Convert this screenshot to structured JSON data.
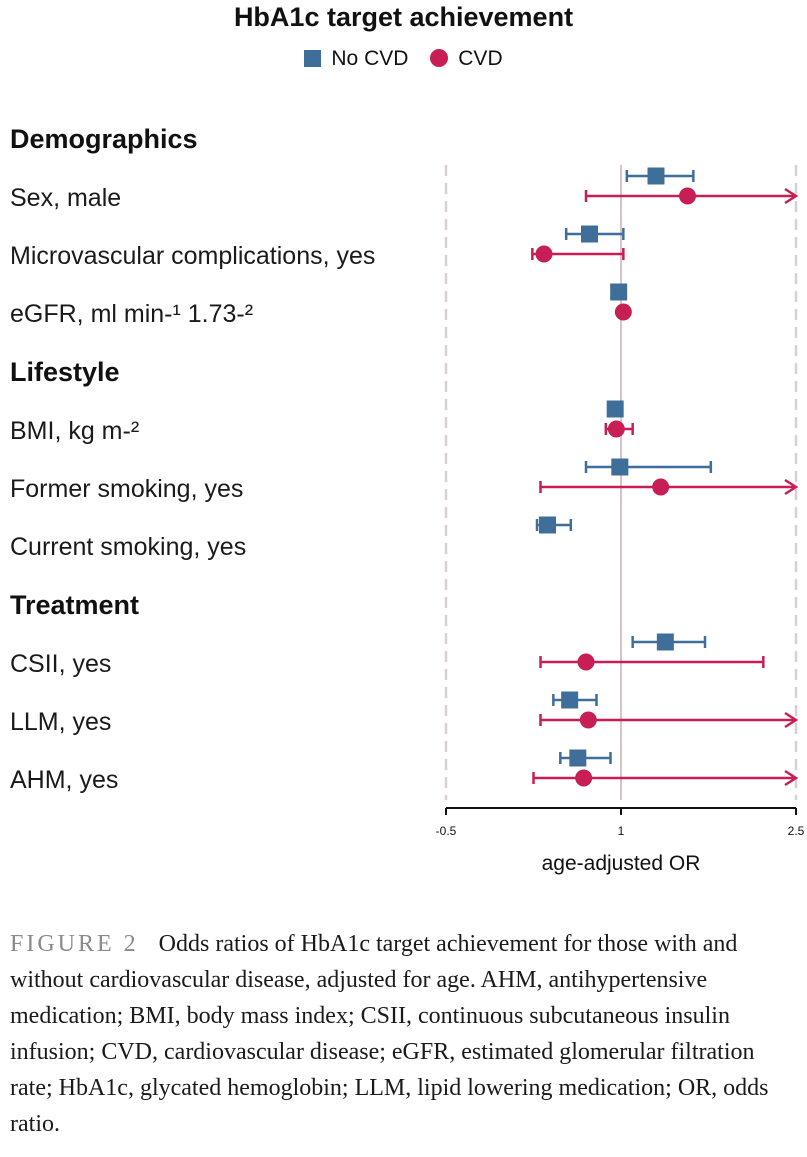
{
  "chart_data": {
    "type": "forest",
    "title": "HbA1c target achievement",
    "xlabel": "age-adjusted OR",
    "xlim": [
      -0.5,
      2.5
    ],
    "ticks": [
      -0.5,
      1,
      2.5
    ],
    "tick_labels": [
      "-0.5",
      "1",
      "2.5"
    ],
    "reference_line": 1,
    "legend": [
      {
        "name": "No CVD",
        "color": "#3f6e9a",
        "marker": "square"
      },
      {
        "name": "CVD",
        "color": "#c81e56",
        "marker": "circle"
      }
    ],
    "sections": [
      {
        "header": "Demographics",
        "rows": [
          {
            "label": "Sex, male",
            "no_cvd": {
              "est": 1.3,
              "lo": 1.05,
              "hi": 1.62
            },
            "cvd": {
              "est": 1.57,
              "lo": 0.7,
              "hi": 2.5,
              "arrow": true
            }
          },
          {
            "label": "Microvascular complications, yes",
            "no_cvd": {
              "est": 0.73,
              "lo": 0.53,
              "hi": 1.02
            },
            "cvd": {
              "est": 0.34,
              "lo": 0.24,
              "hi": 1.02
            }
          },
          {
            "label": "eGFR, ml min-¹ 1.73-²",
            "no_cvd": {
              "est": 0.98
            },
            "cvd": {
              "est": 1.02
            }
          }
        ]
      },
      {
        "header": "Lifestyle",
        "rows": [
          {
            "label": "BMI, kg m-²",
            "no_cvd": {
              "est": 0.95
            },
            "cvd": {
              "est": 0.96,
              "lo": 0.87,
              "hi": 1.1
            }
          },
          {
            "label": "Former smoking, yes",
            "no_cvd": {
              "est": 0.99,
              "lo": 0.7,
              "hi": 1.77
            },
            "cvd": {
              "est": 1.34,
              "lo": 0.31,
              "hi": 2.5,
              "arrow": true
            }
          },
          {
            "label": "Current smoking, yes",
            "no_cvd": {
              "est": 0.37,
              "lo": 0.28,
              "hi": 0.57
            },
            "cvd": null
          }
        ]
      },
      {
        "header": "Treatment",
        "rows": [
          {
            "label": "CSII, yes",
            "no_cvd": {
              "est": 1.38,
              "lo": 1.1,
              "hi": 1.72
            },
            "cvd": {
              "est": 0.7,
              "lo": 0.31,
              "hi": 2.22
            }
          },
          {
            "label": "LLM, yes",
            "no_cvd": {
              "est": 0.56,
              "lo": 0.42,
              "hi": 0.79
            },
            "cvd": {
              "est": 0.72,
              "lo": 0.31,
              "hi": 2.5,
              "arrow": true
            }
          },
          {
            "label": "AHM, yes",
            "no_cvd": {
              "est": 0.63,
              "lo": 0.48,
              "hi": 0.91
            },
            "cvd": {
              "est": 0.68,
              "lo": 0.25,
              "hi": 2.5,
              "arrow": true
            }
          }
        ]
      }
    ]
  },
  "caption": {
    "figure_label": "FIGURE 2",
    "text": "Odds ratios of HbA1c target achievement for those with and without cardiovascular disease, adjusted for age. AHM, antihypertensive medication; BMI, body mass index; CSII, continuous subcutaneous insulin infusion; CVD, cardiovascular disease; eGFR, estimated glomerular filtration rate; HbA1c, glycated hemoglobin; LLM, lipid lowering medication; OR, odds ratio."
  }
}
